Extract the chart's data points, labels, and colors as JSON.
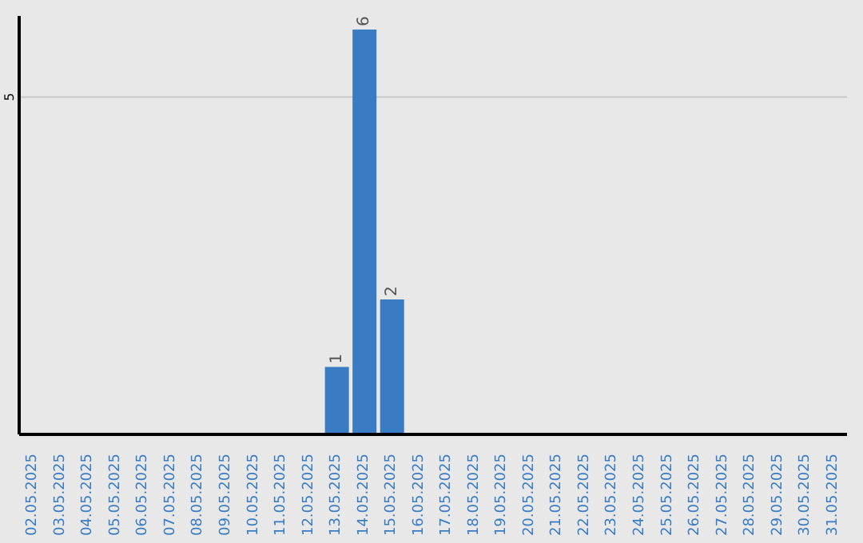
{
  "chart_data": {
    "type": "bar",
    "categories": [
      "02.05.2025",
      "03.05.2025",
      "04.05.2025",
      "05.05.2025",
      "06.05.2025",
      "07.05.2025",
      "08.05.2025",
      "09.05.2025",
      "10.05.2025",
      "11.05.2025",
      "12.05.2025",
      "13.05.2025",
      "14.05.2025",
      "15.05.2025",
      "16.05.2025",
      "17.05.2025",
      "18.05.2025",
      "19.05.2025",
      "20.05.2025",
      "21.05.2025",
      "22.05.2025",
      "23.05.2025",
      "24.05.2025",
      "25.05.2025",
      "26.05.2025",
      "27.05.2025",
      "28.05.2025",
      "29.05.2025",
      "30.05.2025",
      "31.05.2025"
    ],
    "values": [
      null,
      null,
      null,
      null,
      null,
      null,
      null,
      null,
      null,
      null,
      null,
      1,
      6,
      2,
      null,
      null,
      null,
      null,
      null,
      null,
      null,
      null,
      null,
      null,
      null,
      null,
      null,
      null,
      null,
      null
    ],
    "color": "#3a7cc4",
    "ylim": [
      0,
      6.2
    ],
    "yticks": [
      5
    ],
    "grid": "y",
    "data_labels": true
  }
}
